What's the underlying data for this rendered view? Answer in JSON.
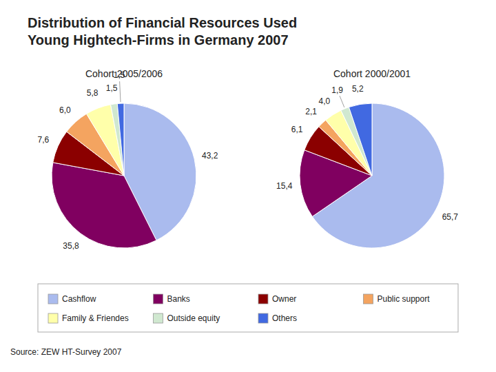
{
  "title": "Distribution of Financial Resources Used\nYoung Hightech-Firms in Germany 2007",
  "annotations": [
    "Source: ZEW HT-Survey 2007"
  ],
  "chart_data": [
    {
      "type": "pie",
      "title": "Cohort 2005/2006",
      "categories": [
        "Cashflow",
        "Banks",
        "Owner",
        "Public support",
        "Family & Friendes",
        "Outside equity",
        "Others"
      ],
      "values": [
        43.2,
        35.8,
        7.6,
        6.0,
        5.8,
        1.5,
        1.5
      ],
      "value_labels": [
        "43,2",
        "35,8",
        "7,6",
        "6,0",
        "5,8",
        "1,5",
        "1,5"
      ],
      "colors": [
        "#AABBEE",
        "#800060",
        "#8B0000",
        "#F4A460",
        "#FFFFAA",
        "#D0E8D0",
        "#4169E1"
      ],
      "data_labels": true,
      "legend": "bottom"
    },
    {
      "type": "pie",
      "title": "Cohort 2000/2001",
      "categories": [
        "Cashflow",
        "Banks",
        "Owner",
        "Public support",
        "Family & Friendes",
        "Outside equity",
        "Others"
      ],
      "values": [
        65.7,
        15.4,
        6.1,
        2.1,
        4.0,
        1.9,
        5.2
      ],
      "value_labels": [
        "65,7",
        "15,4",
        "6,1",
        "2,1",
        "4,0",
        "1,9",
        "5,2"
      ],
      "colors": [
        "#AABBEE",
        "#800060",
        "#8B0000",
        "#F4A460",
        "#FFFFAA",
        "#D0E8D0",
        "#4169E1"
      ],
      "data_labels": true
    }
  ]
}
